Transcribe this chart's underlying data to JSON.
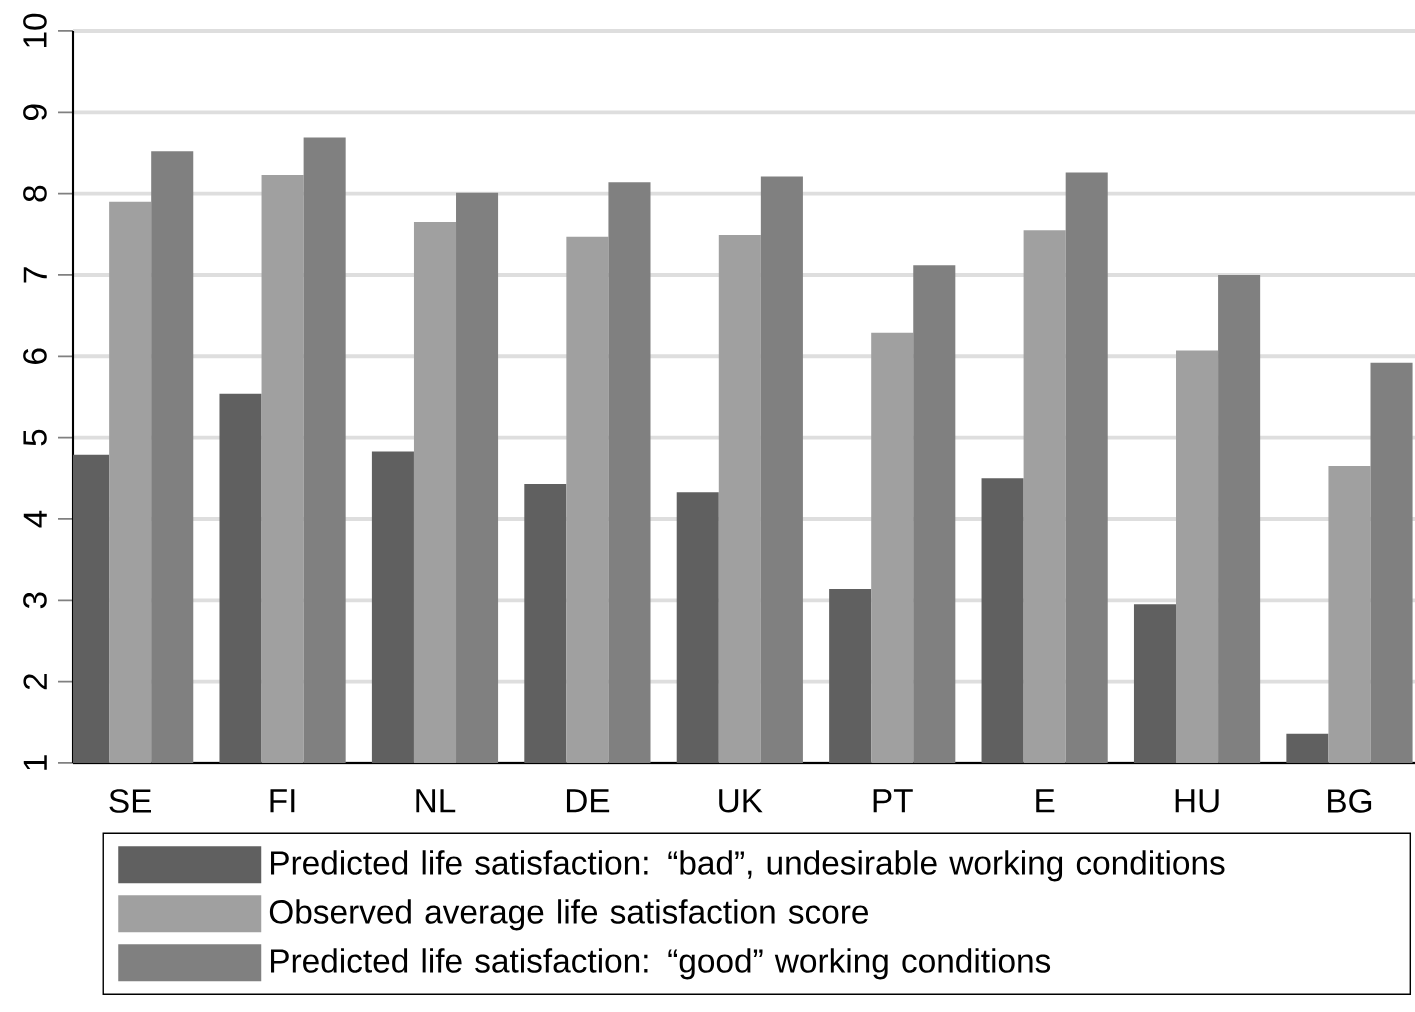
{
  "chart_data": {
    "type": "bar",
    "categories": [
      "SE",
      "FI",
      "NL",
      "DE",
      "UK",
      "PT",
      "E",
      "HU",
      "BG"
    ],
    "series": [
      {
        "name": "Predicted life satisfaction: “bad”, undesirable working conditions",
        "color": "#606060",
        "values": [
          4.79,
          5.54,
          4.83,
          4.43,
          4.33,
          3.14,
          4.5,
          2.95,
          1.36
        ]
      },
      {
        "name": "Observed average life satisfaction score",
        "color": "#a0a0a0",
        "values": [
          7.9,
          8.23,
          7.65,
          7.47,
          7.49,
          6.29,
          7.55,
          6.07,
          4.65
        ]
      },
      {
        "name": "Predicted life satisfaction: “good” working conditions",
        "color": "#808080",
        "values": [
          8.52,
          8.69,
          8.01,
          8.14,
          8.21,
          7.12,
          8.26,
          7.0,
          5.92
        ]
      }
    ],
    "ylim": [
      1,
      10
    ],
    "yticks": [
      1,
      2,
      3,
      4,
      5,
      6,
      7,
      8,
      9,
      10
    ],
    "grid": "y",
    "legend": "bottom"
  }
}
